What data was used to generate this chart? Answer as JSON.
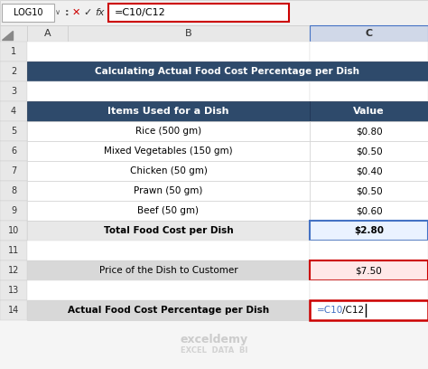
{
  "title_bar_color": "#2E4A6B",
  "title_text": "Calculating Actual Food Cost Percentage per Dish",
  "title_text_color": "#FFFFFF",
  "header_bg_color": "#2E4A6B",
  "header_text_color": "#FFFFFF",
  "row_bg_light": "#FFFFFF",
  "row_bg_total": "#E8E8E8",
  "row_bg_price": "#D8D8D8",
  "formula_cell_bg_red": "#FFE8E8",
  "formula_cell_bg_blue": "#EAF2FF",
  "col_header": [
    "Items Used for a Dish",
    "Value"
  ],
  "rows": [
    [
      "Rice (500 gm)",
      "$0.80"
    ],
    [
      "Mixed Vegetables (150 gm)",
      "$0.50"
    ],
    [
      "Chicken (50 gm)",
      "$0.40"
    ],
    [
      "Prawn (50 gm)",
      "$0.50"
    ],
    [
      "Beef (50 gm)",
      "$0.60"
    ],
    [
      "Total Food Cost per Dish",
      "$2.80"
    ]
  ],
  "price_label": "Price of the Dish to Customer",
  "price_value": "$7.50",
  "formula_label": "Actual Food Cost Percentage per Dish",
  "formula_bar_text": "=C10/C12",
  "name_box": "LOG10",
  "toolbar_bg": "#F0F0F0",
  "excel_header_bg": "#E8E8E8",
  "border_red": "#CC0000",
  "border_blue": "#4472C4",
  "watermark_line1": "exceldemy",
  "watermark_line2": "EXCEL  DATA  BI"
}
